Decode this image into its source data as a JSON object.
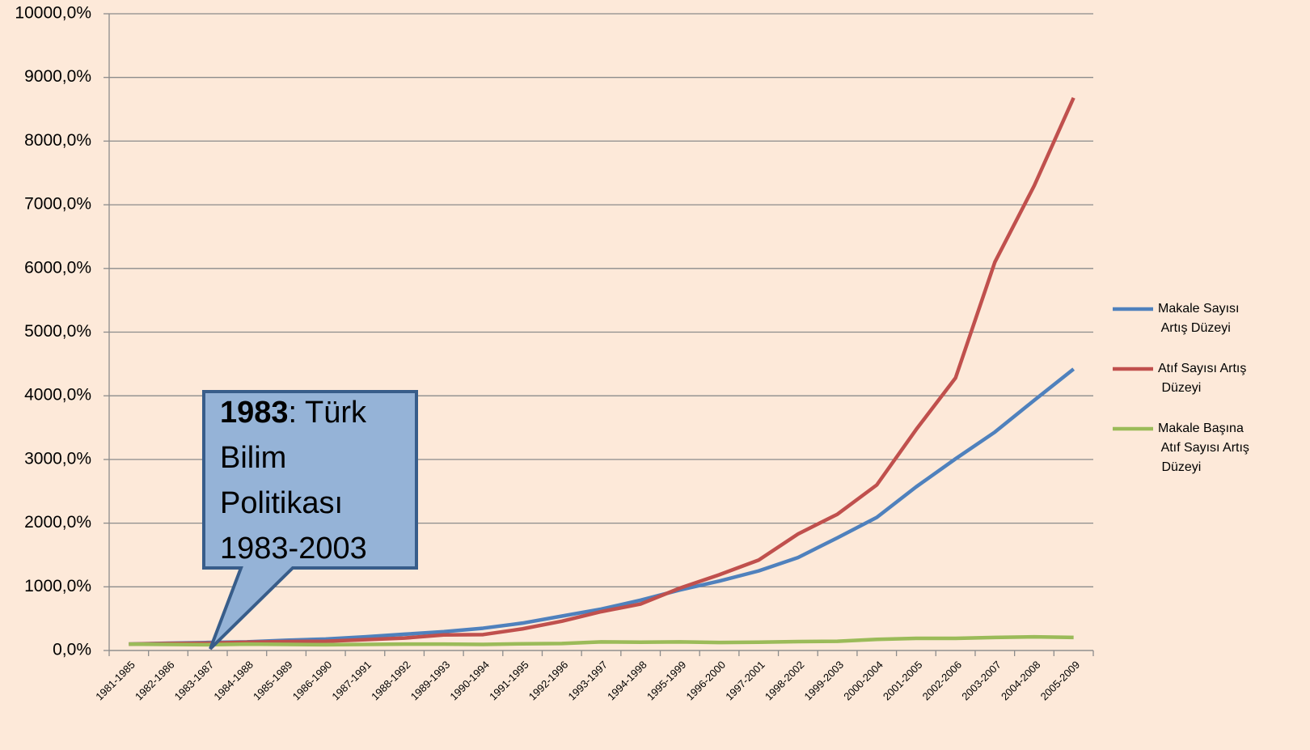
{
  "chart_data": {
    "type": "line",
    "categories": [
      "1981-1985",
      "1982-1986",
      "1983-1987",
      "1984-1988",
      "1985-1989",
      "1986-1990",
      "1987-1991",
      "1988-1992",
      "1989-1993",
      "1990-1994",
      "1991-1995",
      "1992-1996",
      "1993-1997",
      "1994-1998",
      "1995-1999",
      "1996-2000",
      "1997-2001",
      "1998-2002",
      "1999-2003",
      "2000-2004",
      "2001-2005",
      "2002-2006",
      "2003-2007",
      "2004-2008",
      "2005-2009"
    ],
    "series": [
      {
        "name": "Makale Sayısı Artış Düzeyi",
        "color": "#4f81bd",
        "values": [
          100,
          115,
          125,
          135,
          160,
          180,
          215,
          255,
          295,
          350,
          430,
          540,
          650,
          790,
          950,
          1090,
          1250,
          1460,
          1770,
          2090,
          2570,
          3010,
          3430,
          3930,
          4420
        ]
      },
      {
        "name": "Atıf Sayısı Artış Düzeyi",
        "color": "#c0504d",
        "values": [
          100,
          110,
          115,
          130,
          140,
          145,
          170,
          195,
          245,
          250,
          340,
          460,
          610,
          730,
          980,
          1190,
          1420,
          1830,
          2140,
          2600,
          3470,
          4280,
          6100,
          7300,
          8680
        ]
      },
      {
        "name": "Makale Başına Atıf Sayısı Artış Düzeyi",
        "color": "#9bbb59",
        "values": [
          100,
          95,
          90,
          100,
          95,
          90,
          95,
          100,
          100,
          95,
          105,
          110,
          135,
          130,
          135,
          125,
          130,
          140,
          145,
          175,
          190,
          190,
          205,
          215,
          205
        ]
      }
    ],
    "ylim": [
      0,
      10000
    ],
    "yticks": [
      {
        "value": 0,
        "label": "0,0%"
      },
      {
        "value": 1000,
        "label": "1000,0%"
      },
      {
        "value": 2000,
        "label": "2000,0%"
      },
      {
        "value": 3000,
        "label": "3000,0%"
      },
      {
        "value": 4000,
        "label": "4000,0%"
      },
      {
        "value": 5000,
        "label": "5000,0%"
      },
      {
        "value": 6000,
        "label": "6000,0%"
      },
      {
        "value": 7000,
        "label": "7000,0%"
      },
      {
        "value": 8000,
        "label": "8000,0%"
      },
      {
        "value": 9000,
        "label": "9000,0%"
      },
      {
        "value": 10000,
        "label": "10000,0%"
      }
    ],
    "grid": true,
    "legend": "right",
    "annotation": {
      "bold": "1983",
      "lines": [
        ": Türk",
        "Bilim",
        "Politikası",
        "1983-2003"
      ]
    }
  }
}
